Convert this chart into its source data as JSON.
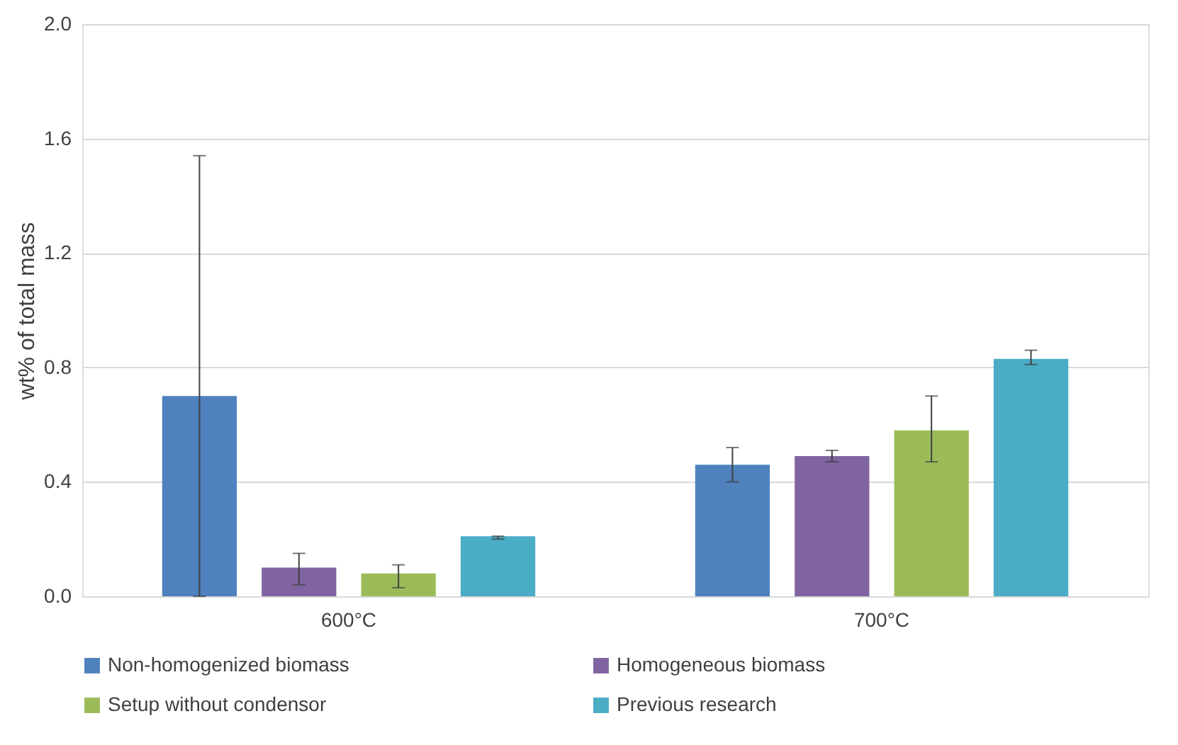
{
  "chart_data": {
    "type": "bar",
    "ylabel": "wt% of total mass",
    "categories": [
      "600°C",
      "700°C"
    ],
    "series": [
      {
        "name": "Non-homogenized biomass",
        "color": "#4f81bd",
        "values": [
          0.7,
          0.46
        ],
        "errors": [
          [
            0.0,
            1.54
          ],
          [
            0.4,
            0.52
          ]
        ]
      },
      {
        "name": "Homogeneous biomass",
        "color": "#8064a2",
        "values": [
          0.1,
          0.49
        ],
        "errors": [
          [
            0.04,
            0.15
          ],
          [
            0.47,
            0.51
          ]
        ]
      },
      {
        "name": "Setup without condensor",
        "color": "#9bbb59",
        "values": [
          0.08,
          0.58
        ],
        "errors": [
          [
            0.03,
            0.11
          ],
          [
            0.47,
            0.7
          ]
        ]
      },
      {
        "name": "Previous research",
        "color": "#4bacc6",
        "values": [
          0.21,
          0.83
        ],
        "errors": [
          [
            0.2,
            0.21
          ],
          [
            0.81,
            0.86
          ]
        ]
      }
    ],
    "ylim": [
      0,
      2.0
    ],
    "yticks": [
      {
        "value": 0,
        "label": "0.0"
      },
      {
        "value": 0.4,
        "label": "0.4"
      },
      {
        "value": 0.8,
        "label": "0.8"
      },
      {
        "value": 1.2,
        "label": "1.2"
      },
      {
        "value": 1.6,
        "label": "1.6"
      },
      {
        "value": 2.0,
        "label": "2.0"
      }
    ],
    "grid": "y",
    "legend": "bottom"
  }
}
